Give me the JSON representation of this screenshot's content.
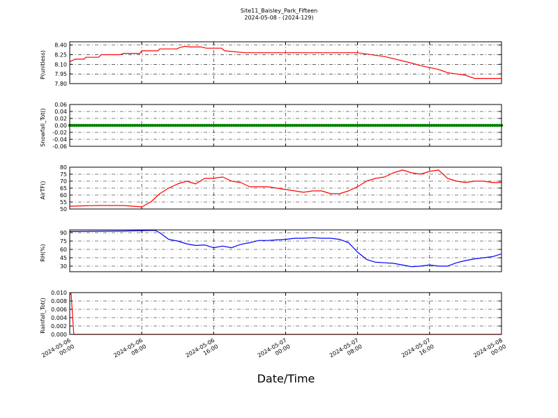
{
  "figure": {
    "title_line1": "Site11_Baisley_Park_Fifteen",
    "title_line2": "2024-05-08 - (2024-129)",
    "xlabel": "Date/Time",
    "x_ticks": [
      "2024-05-06 00:00",
      "2024-05-06 08:00",
      "2024-05-06 16:00",
      "2024-05-07 00:00",
      "2024-05-07 08:00",
      "2024-05-07 16:00",
      "2024-05-08 00:00"
    ]
  },
  "chart_data": [
    {
      "type": "line",
      "ylabel": "P(unitless)",
      "color": "#ff0000",
      "ylim": [
        7.8,
        8.45
      ],
      "yticks": [
        "7.80",
        "7.95",
        "8.10",
        "8.25",
        "8.40"
      ],
      "xlim_hours": [
        0,
        48
      ],
      "x": [
        0,
        0.6,
        1.6,
        1.8,
        3.2,
        3.5,
        5.6,
        6,
        7.8,
        8,
        9.8,
        10,
        11.9,
        12.2,
        12.8,
        13.4,
        14.6,
        15.2,
        16.9,
        17.2,
        19.5,
        24,
        32,
        35,
        38,
        39,
        41,
        42,
        44,
        45,
        48
      ],
      "y": [
        8.14,
        8.18,
        8.18,
        8.21,
        8.21,
        8.25,
        8.25,
        8.27,
        8.27,
        8.31,
        8.31,
        8.34,
        8.34,
        8.36,
        8.38,
        8.37,
        8.37,
        8.35,
        8.35,
        8.31,
        8.28,
        8.28,
        8.28,
        8.22,
        8.12,
        8.08,
        8.02,
        7.97,
        7.93,
        7.88,
        7.88
      ]
    },
    {
      "type": "scatter",
      "ylabel": "Snowfall_Tot()",
      "color": "#008000",
      "ylim": [
        -0.06,
        0.06
      ],
      "yticks": [
        "-0.06",
        "-0.04",
        "-0.02",
        "0.00",
        "0.02",
        "0.04",
        "0.06"
      ],
      "xlim_hours": [
        0,
        48
      ],
      "x_range": [
        0,
        48
      ],
      "step_hours": 0.25,
      "constant_value": 0.0
    },
    {
      "type": "line",
      "ylabel": "AirTF()",
      "color": "#ff0000",
      "ylim": [
        50,
        80
      ],
      "yticks": [
        "50",
        "55",
        "60",
        "65",
        "70",
        "75",
        "80"
      ],
      "xlim_hours": [
        0,
        48
      ],
      "x": [
        0,
        3,
        6,
        8,
        9,
        10,
        11,
        12,
        13,
        14,
        15,
        16,
        17,
        18,
        19,
        20,
        21,
        22,
        23,
        24,
        25,
        26,
        27,
        28,
        29,
        30,
        31,
        32,
        33,
        34,
        35,
        36,
        37,
        38,
        39,
        40,
        41,
        42,
        43,
        44,
        45,
        46,
        47,
        48
      ],
      "y": [
        52,
        52.5,
        52.5,
        51.5,
        55,
        61,
        65,
        68,
        70,
        68,
        72,
        72,
        73,
        70,
        69,
        66,
        66,
        66,
        65,
        64,
        63,
        62,
        63,
        63,
        61,
        61,
        63,
        66,
        70,
        72,
        73,
        76,
        78,
        76,
        75,
        77,
        78,
        72,
        70,
        69,
        70,
        70,
        69,
        69
      ]
    },
    {
      "type": "line",
      "ylabel": "RH(%)",
      "color": "#0000ff",
      "ylim": [
        20,
        95
      ],
      "yticks": [
        "30",
        "45",
        "60",
        "75",
        "90"
      ],
      "xlim_hours": [
        0,
        48
      ],
      "x": [
        0,
        6,
        9,
        9.5,
        10,
        11,
        12,
        13,
        14,
        15,
        16,
        17,
        18,
        19,
        20,
        21,
        22,
        23,
        24,
        25,
        26,
        27,
        28,
        29,
        30,
        31,
        32,
        33,
        34,
        35,
        36,
        37,
        38,
        39,
        40,
        41,
        42,
        43,
        44,
        45,
        46,
        47,
        48
      ],
      "y": [
        92,
        93,
        94,
        94,
        90,
        78,
        75,
        70,
        67,
        68,
        63,
        66,
        63,
        69,
        72,
        76,
        76,
        77,
        78,
        80,
        80,
        81,
        80,
        80,
        78,
        72,
        55,
        42,
        37,
        36,
        35,
        32,
        29,
        30,
        32,
        30,
        30,
        36,
        40,
        43,
        45,
        47,
        52
      ]
    },
    {
      "type": "line",
      "ylabel": "Rainfall_Tot()",
      "color": "#ff0000",
      "ylim": [
        0,
        0.01
      ],
      "yticks": [
        "0.000",
        "0.002",
        "0.004",
        "0.006",
        "0.008",
        "0.010"
      ],
      "xlim_hours": [
        0,
        48
      ],
      "x": [
        0,
        0.15,
        0.45,
        48
      ],
      "y": [
        0.0095,
        0.0098,
        0.0,
        0.0
      ]
    }
  ]
}
